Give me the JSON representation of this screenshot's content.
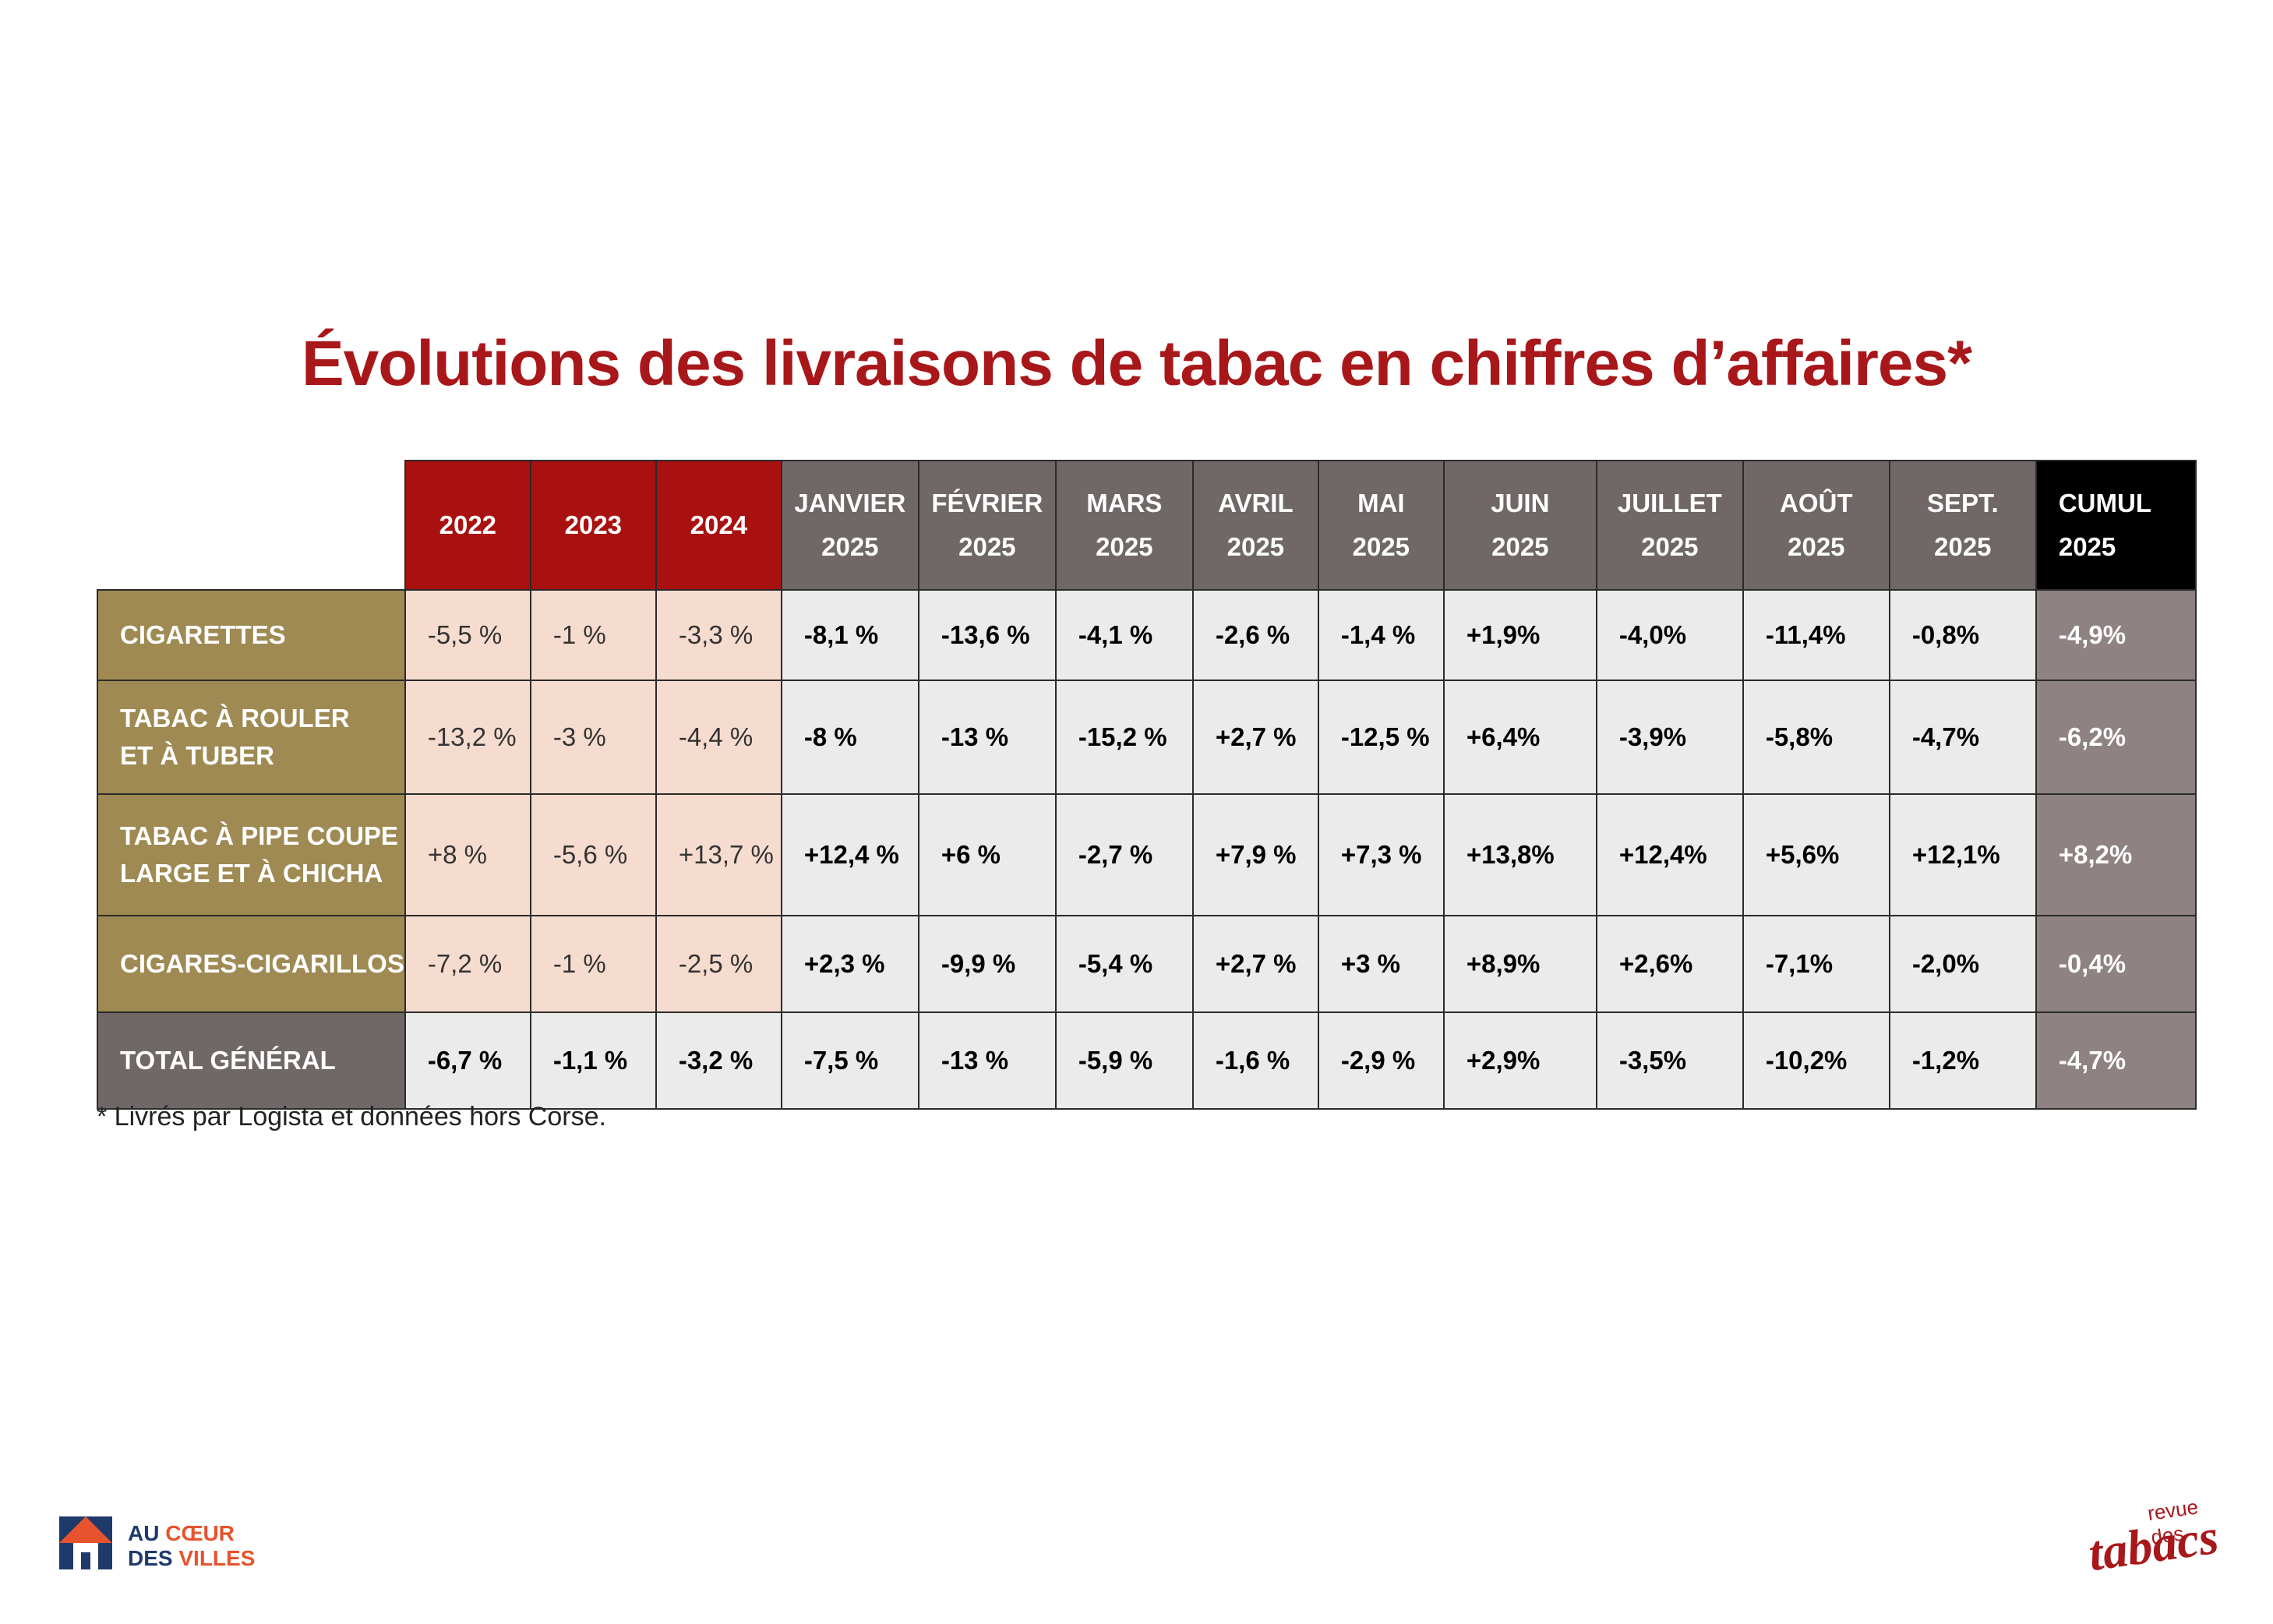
{
  "title": "Évolutions des livraisons de tabac en chiffres d’affaires*",
  "chart_data": {
    "type": "table",
    "columns": [
      {
        "line1": "2022",
        "line2": "",
        "kind": "year"
      },
      {
        "line1": "2023",
        "line2": "",
        "kind": "year"
      },
      {
        "line1": "2024",
        "line2": "",
        "kind": "year"
      },
      {
        "line1": "JANVIER",
        "line2": "2025",
        "kind": "month"
      },
      {
        "line1": "FÉVRIER",
        "line2": "2025",
        "kind": "month"
      },
      {
        "line1": "MARS",
        "line2": "2025",
        "kind": "month"
      },
      {
        "line1": "AVRIL",
        "line2": "2025",
        "kind": "month"
      },
      {
        "line1": "MAI",
        "line2": "2025",
        "kind": "month"
      },
      {
        "line1": "JUIN",
        "line2": "2025",
        "kind": "month"
      },
      {
        "line1": "JUILLET",
        "line2": "2025",
        "kind": "month"
      },
      {
        "line1": "AOÛT",
        "line2": "2025",
        "kind": "month"
      },
      {
        "line1": "SEPT.",
        "line2": "2025",
        "kind": "month"
      },
      {
        "line1": "CUMUL",
        "line2": "2025",
        "kind": "cumul"
      }
    ],
    "rows": [
      {
        "label1": "CIGARETTES",
        "label2": "",
        "total": false,
        "values": [
          "-5,5 %",
          "-1 %",
          "-3,3 %",
          "-8,1 %",
          "-13,6 %",
          "-4,1 %",
          "-2,6 %",
          "-1,4 %",
          "+1,9%",
          "-4,0%",
          "-11,4%",
          "-0,8%",
          "-4,9%"
        ]
      },
      {
        "label1": "TABAC À ROULER",
        "label2": "ET À TUBER",
        "total": false,
        "values": [
          "-13,2 %",
          "-3 %",
          "-4,4 %",
          "-8 %",
          "-13 %",
          "-15,2 %",
          "+2,7 %",
          "-12,5 %",
          "+6,4%",
          "-3,9%",
          "-5,8%",
          "-4,7%",
          "-6,2%"
        ]
      },
      {
        "label1": "TABAC À PIPE COUPE",
        "label2": "LARGE ET À CHICHA",
        "total": false,
        "values": [
          "+8 %",
          "-5,6 %",
          "+13,7 %",
          "+12,4 %",
          "+6 %",
          "-2,7 %",
          "+7,9 %",
          "+7,3 %",
          "+13,8%",
          "+12,4%",
          "+5,6%",
          "+12,1%",
          "+8,2%"
        ]
      },
      {
        "label1": "CIGARES-CIGARILLOS",
        "label2": "",
        "total": false,
        "values": [
          "-7,2 %",
          "-1 %",
          "-2,5 %",
          "+2,3 %",
          "-9,9 %",
          "-5,4 %",
          "+2,7 %",
          "+3 %",
          "+8,9%",
          "+2,6%",
          "-7,1%",
          "-2,0%",
          "-0,4%"
        ]
      },
      {
        "label1": "TOTAL GÉNÉRAL",
        "label2": "",
        "total": true,
        "values": [
          "-6,7 %",
          "-1,1 %",
          "-3,2 %",
          "-7,5 %",
          "-13 %",
          "-5,9 %",
          "-1,6 %",
          "-2,9 %",
          "+2,9%",
          "-3,5%",
          "-10,2%",
          "-1,2%",
          "-4,7%"
        ]
      }
    ]
  },
  "footnote": "* Livrés par Logista et données hors Corse.",
  "logos": {
    "left_line1_a": "AU ",
    "left_line1_b": "CŒUR",
    "left_line2_a": "DES ",
    "left_line2_b": "VILLES",
    "right_small": "revue des",
    "right_big": "tabacs"
  },
  "colors": {
    "title": "#a8171a",
    "year_header": "#a8110f",
    "month_header": "#706767",
    "cumul_header": "#000000",
    "row_label": "#9e8a52",
    "year_cell": "#f6dccf",
    "month_cell": "#ebebeb",
    "cumul_cell": "#8e8282"
  }
}
